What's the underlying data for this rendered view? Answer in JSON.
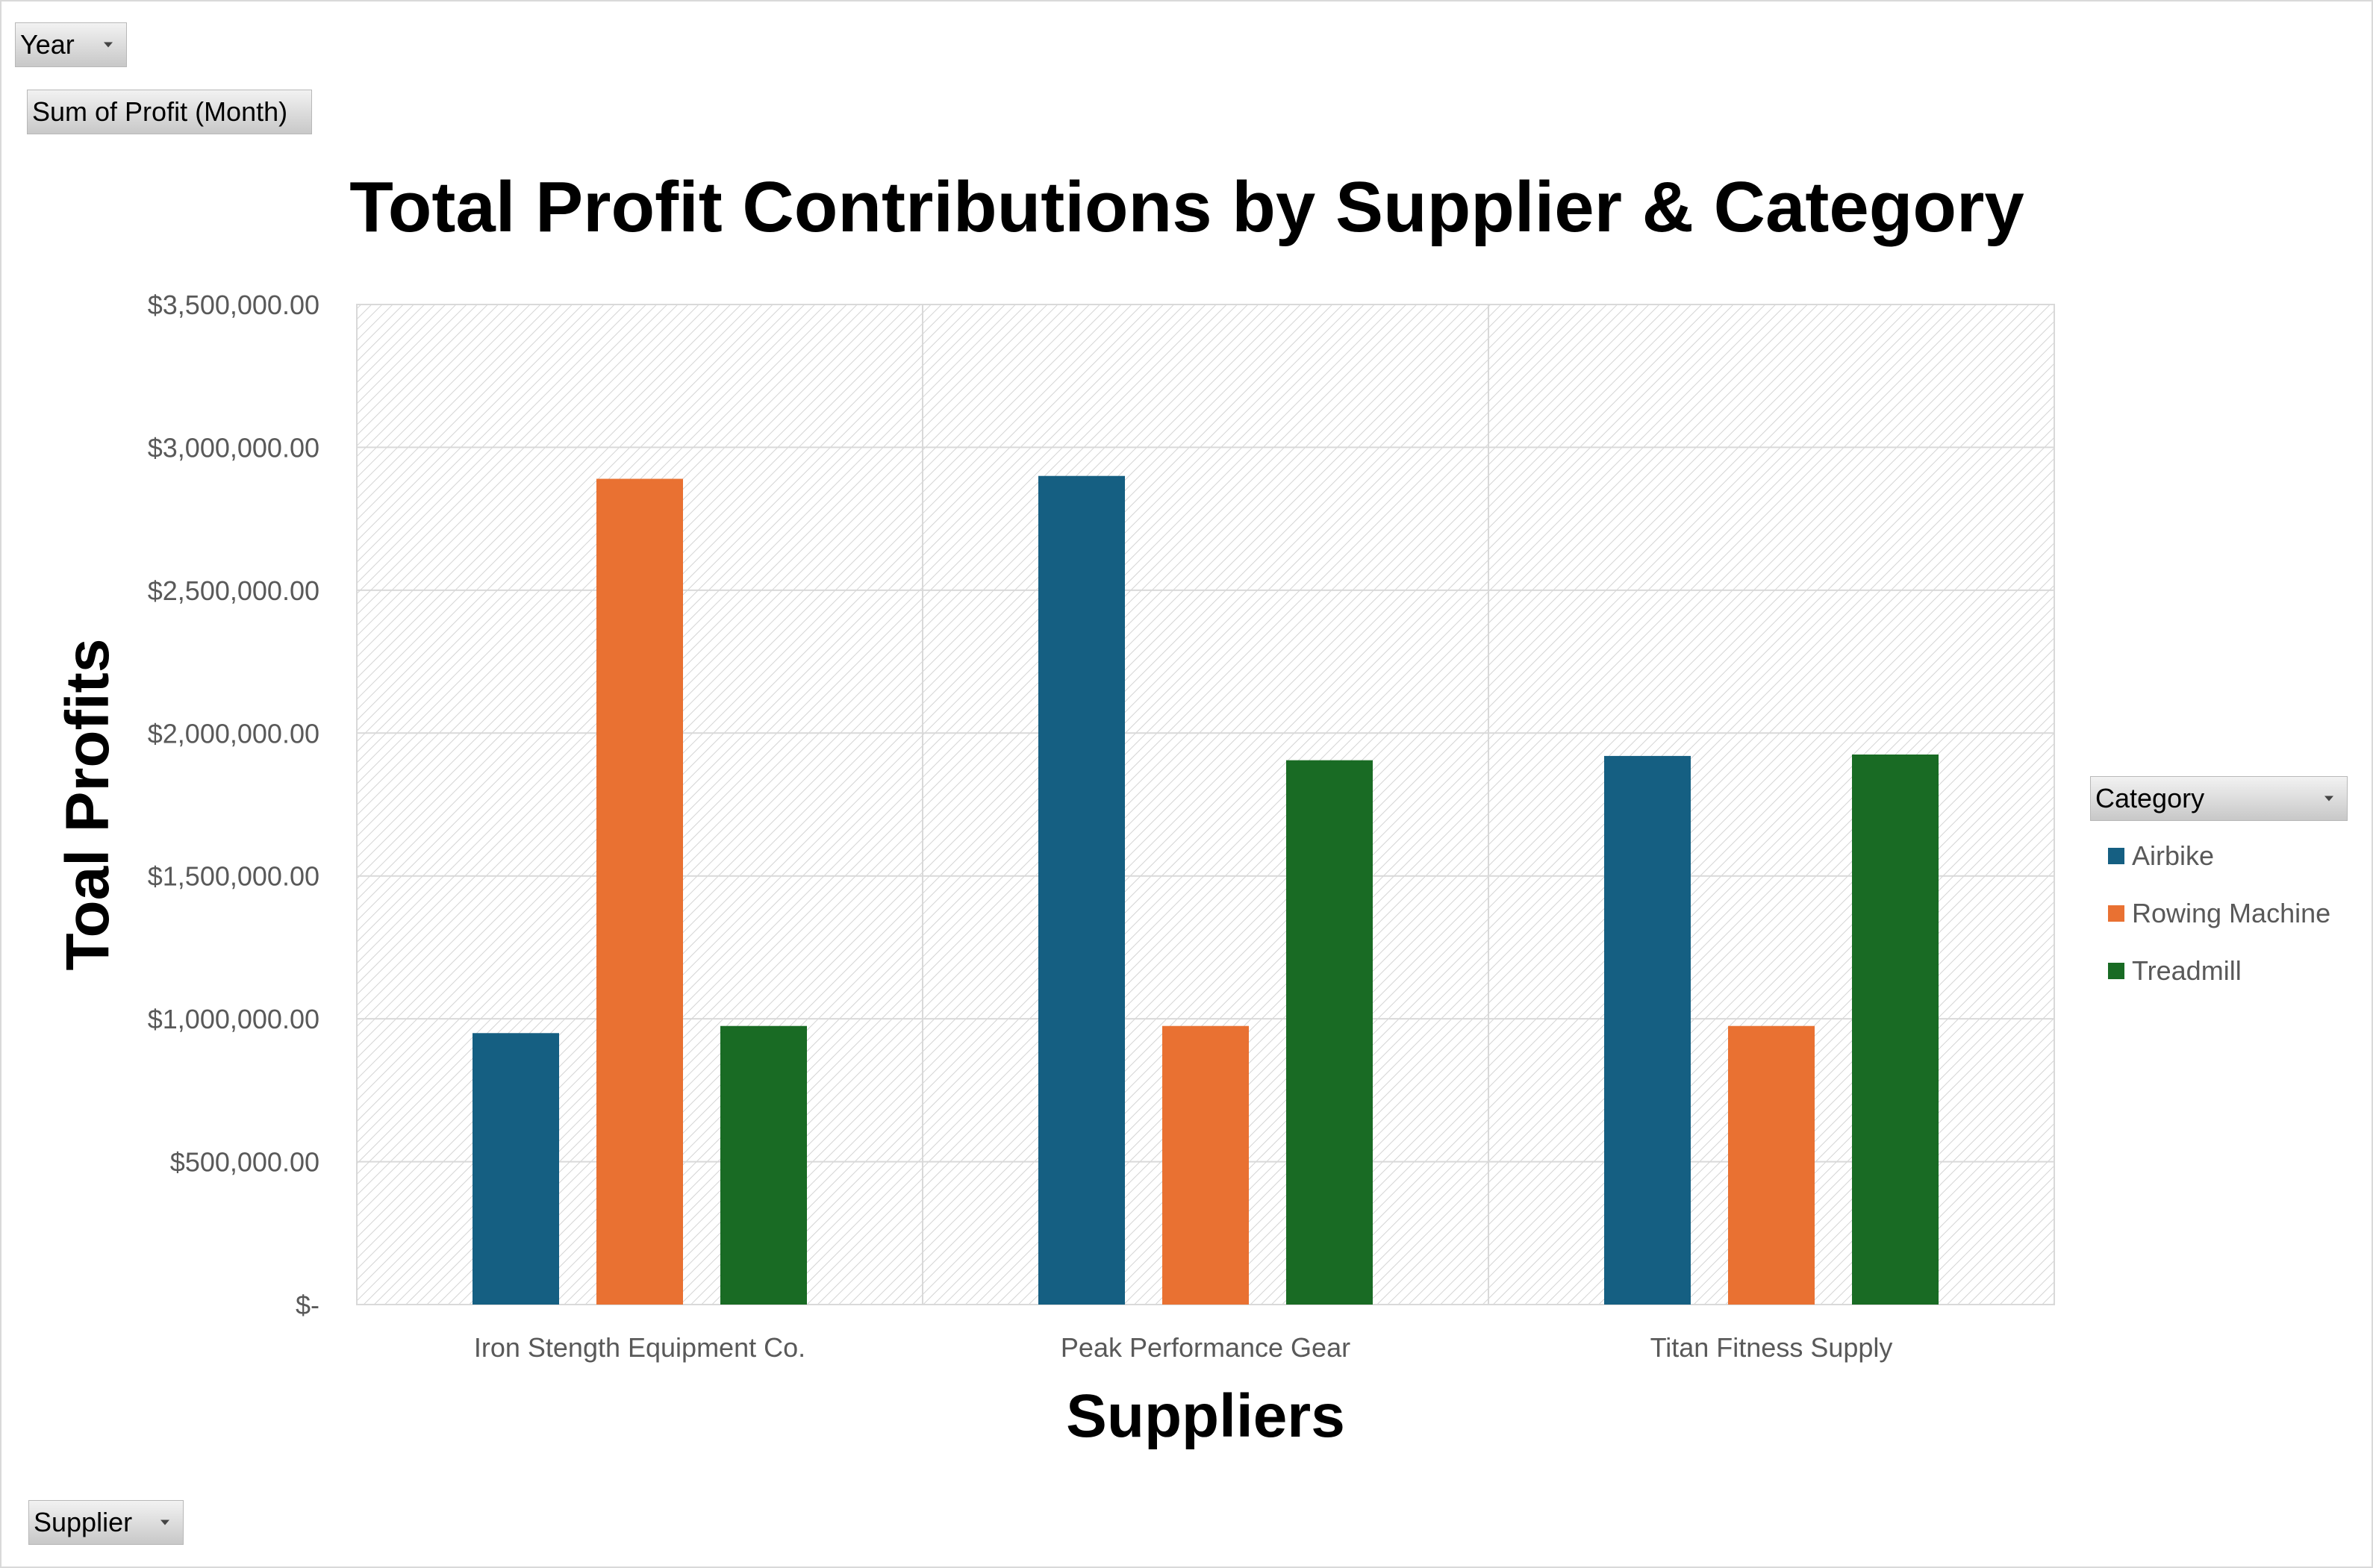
{
  "pivot_fields": {
    "year_label": "Year",
    "sum_label": "Sum of Profit (Month)",
    "supplier_label": "Supplier",
    "category_label": "Category"
  },
  "colors": {
    "Airbike": "#155F82",
    "Rowing Machine": "#E97132",
    "Treadmill": "#196B24",
    "gridline": "#d9d9d9",
    "axis_text": "#595959"
  },
  "chart_data": {
    "type": "bar",
    "title": "Total Profit Contributions by Supplier & Category",
    "xlabel": "Suppliers",
    "ylabel": "Toal Profits",
    "categories": [
      "Iron Stength Equipment Co.",
      "Peak Performance Gear",
      "Titan Fitness Supply"
    ],
    "series": [
      {
        "name": "Airbike",
        "values": [
          950000,
          2900000,
          1920000
        ]
      },
      {
        "name": "Rowing Machine",
        "values": [
          2890000,
          975000,
          975000
        ]
      },
      {
        "name": "Treadmill",
        "values": [
          975000,
          1905000,
          1925000
        ]
      }
    ],
    "ylim": [
      0,
      3500000
    ],
    "yticks": [
      {
        "value": 0,
        "label": "$-"
      },
      {
        "value": 500000,
        "label": "$500,000.00"
      },
      {
        "value": 1000000,
        "label": "$1,000,000.00"
      },
      {
        "value": 1500000,
        "label": "$1,500,000.00"
      },
      {
        "value": 2000000,
        "label": "$2,000,000.00"
      },
      {
        "value": 2500000,
        "label": "$2,500,000.00"
      },
      {
        "value": 3000000,
        "label": "$3,000,000.00"
      },
      {
        "value": 3500000,
        "label": "$3,500,000.00"
      }
    ],
    "grid": true,
    "legend_position": "right"
  }
}
